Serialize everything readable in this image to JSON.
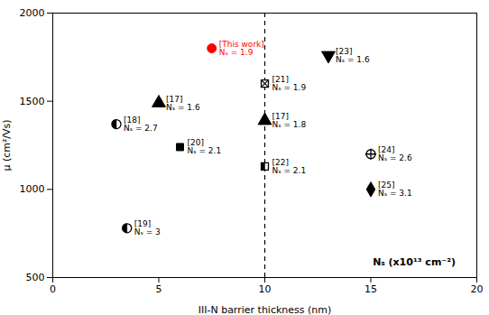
{
  "chart_data": {
    "type": "scatter",
    "xlabel": "III-N barrier thickness (nm)",
    "ylabel": "μ (cm²/Vs)",
    "xlim": [
      0,
      20
    ],
    "ylim": [
      500,
      2000
    ],
    "xticks": [
      0,
      5,
      10,
      15,
      20
    ],
    "yticks": [
      500,
      1000,
      1500,
      2000
    ],
    "grid": false,
    "points": [
      {
        "x": 7.5,
        "y": 1800,
        "marker": "filled_circle",
        "color": "red",
        "label": "[This work]\nNₛ = 1.9"
      },
      {
        "x": 5.0,
        "y": 1490,
        "marker": "filled_triangle_up",
        "color": "black",
        "label": "[17]\nNₛ = 1.6"
      },
      {
        "x": 3.0,
        "y": 1370,
        "marker": "half_circle",
        "color": "black",
        "label": "[18]\nNₛ = 2.7"
      },
      {
        "x": 6.0,
        "y": 1240,
        "marker": "filled_square",
        "color": "black",
        "label": "[20]\nNₛ = 2.1"
      },
      {
        "x": 3.5,
        "y": 780,
        "marker": "half_circle",
        "color": "black",
        "label": "[19]\nNₛ = 3"
      },
      {
        "x": 13.0,
        "y": 1760,
        "marker": "filled_triangle_dn",
        "color": "black",
        "label": "[23]\nNₛ = 1.6"
      },
      {
        "x": 10.0,
        "y": 1600,
        "marker": "square_x",
        "color": "black",
        "label": "[21]\nNₛ = 1.9"
      },
      {
        "x": 10.0,
        "y": 1390,
        "marker": "filled_triangle_up",
        "color": "black",
        "label": "[17]\nNₛ = 1.8"
      },
      {
        "x": 10.0,
        "y": 1130,
        "marker": "half_square",
        "color": "black",
        "label": "[22]\nNₛ = 2.1"
      },
      {
        "x": 15.0,
        "y": 1200,
        "marker": "circle_plus",
        "color": "black",
        "label": "[24]\nNₛ = 2.6"
      },
      {
        "x": 15.0,
        "y": 1000,
        "marker": "filled_diamond",
        "color": "black",
        "label": "[25]\nNₛ = 3.1"
      }
    ],
    "annotations": [
      {
        "type": "vline",
        "x": 10,
        "color": "black",
        "line_style": "dashed"
      },
      {
        "type": "text",
        "text": "Nₛ (x10¹³ cm⁻²)",
        "x": 19,
        "y": 570
      }
    ]
  }
}
